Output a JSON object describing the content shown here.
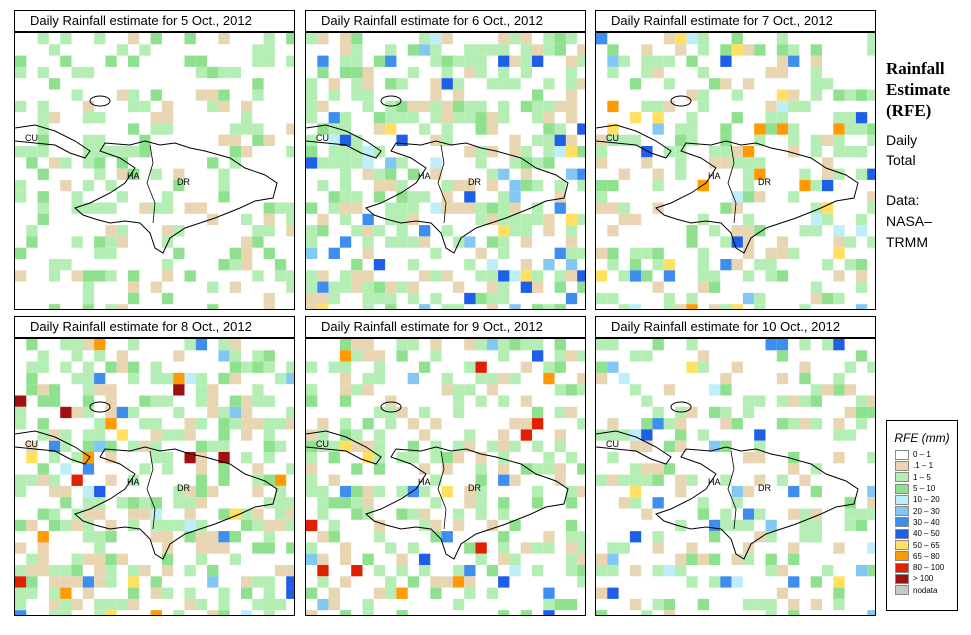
{
  "panels": [
    {
      "title": "Daily Rainfall estimate for  5 Oct., 2012"
    },
    {
      "title": "Daily Rainfall estimate for  6 Oct., 2012"
    },
    {
      "title": "Daily Rainfall estimate for  7 Oct., 2012"
    },
    {
      "title": "Daily Rainfall estimate for  8 Oct., 2012"
    },
    {
      "title": "Daily Rainfall estimate for  9 Oct., 2012"
    },
    {
      "title": "Daily Rainfall estimate for  10 Oct., 2012"
    }
  ],
  "map_labels": {
    "cuba": "CU",
    "haiti": "HA",
    "dominican_republic": "DR"
  },
  "side": {
    "title_line1": "Rainfall",
    "title_line2": "Estimate",
    "title_line3": "(RFE)",
    "daily_line1": "Daily",
    "daily_line2": "Total",
    "data_line1": "Data:",
    "data_line2": "NASA–",
    "data_line3": "TRMM"
  },
  "legend": {
    "title": "RFE (mm)",
    "items": [
      {
        "label": "0 – 1",
        "color": "#ffffff"
      },
      {
        "label": ".1 – 1",
        "color": "#e8d6b3"
      },
      {
        "label": "1 – 5",
        "color": "#b4eeb4"
      },
      {
        "label": "5 – 10",
        "color": "#8fe08f"
      },
      {
        "label": "10 – 20",
        "color": "#bfeefb"
      },
      {
        "label": "20 – 30",
        "color": "#82c8f3"
      },
      {
        "label": "30 – 40",
        "color": "#3e8ef0"
      },
      {
        "label": "40 – 50",
        "color": "#1f5ee6"
      },
      {
        "label": "50 – 65",
        "color": "#ffe060"
      },
      {
        "label": "65 – 80",
        "color": "#ff9a00"
      },
      {
        "label": "80 – 100",
        "color": "#e02000"
      },
      {
        "label": "> 100",
        "color": "#a01010"
      },
      {
        "label": "nodata",
        "color": "#c8c8c8"
      }
    ]
  }
}
